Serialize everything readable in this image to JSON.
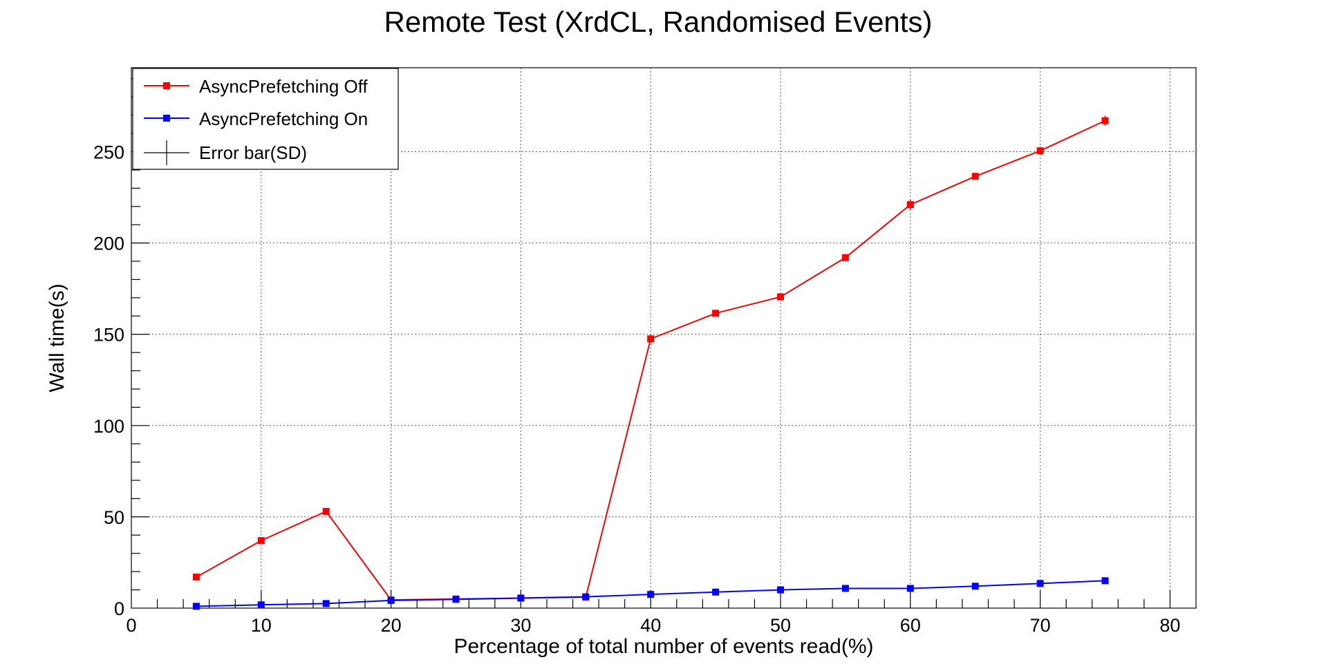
{
  "chart_data": {
    "type": "line",
    "title": "Remote Test (XrdCL, Randomised Events)",
    "xlabel": "Percentage of total number of events read(%)",
    "ylabel": "Wall time(s)",
    "xlim": [
      0,
      82
    ],
    "ylim": [
      0,
      296
    ],
    "x_ticks": [
      0,
      10,
      20,
      30,
      40,
      50,
      60,
      70,
      80
    ],
    "y_ticks": [
      0,
      50,
      100,
      150,
      200,
      250
    ],
    "grid": true,
    "legend_position": "top-left",
    "x": [
      5,
      10,
      15,
      20,
      25,
      30,
      35,
      40,
      45,
      50,
      55,
      60,
      65,
      70,
      75
    ],
    "series": [
      {
        "name": "AsyncPrefetching Off",
        "color": "#ff0000",
        "values": [
          17,
          37,
          53,
          4.5,
          5,
          5.5,
          6,
          147.5,
          161.5,
          170.5,
          192,
          221,
          236.5,
          250.5,
          267
        ],
        "errors": [
          0.8,
          0.8,
          0.8,
          0.5,
          0.5,
          0.5,
          0.5,
          2.2,
          0.8,
          0.8,
          0.8,
          2.8,
          0.8,
          2.2,
          2.8
        ]
      },
      {
        "name": "AsyncPrefetching On",
        "color": "#0000ff",
        "values": [
          1,
          1.8,
          2.5,
          4.2,
          4.8,
          5.5,
          6.2,
          7.5,
          8.8,
          10,
          10.8,
          10.8,
          12,
          13.5,
          15
        ],
        "errors": [
          0.3,
          0.3,
          0.3,
          0.3,
          0.3,
          0.5,
          0.3,
          0.3,
          0.3,
          0.3,
          0.3,
          0.3,
          0.3,
          0.8,
          0.5
        ]
      }
    ],
    "error_legend": "Error bar(SD)"
  }
}
